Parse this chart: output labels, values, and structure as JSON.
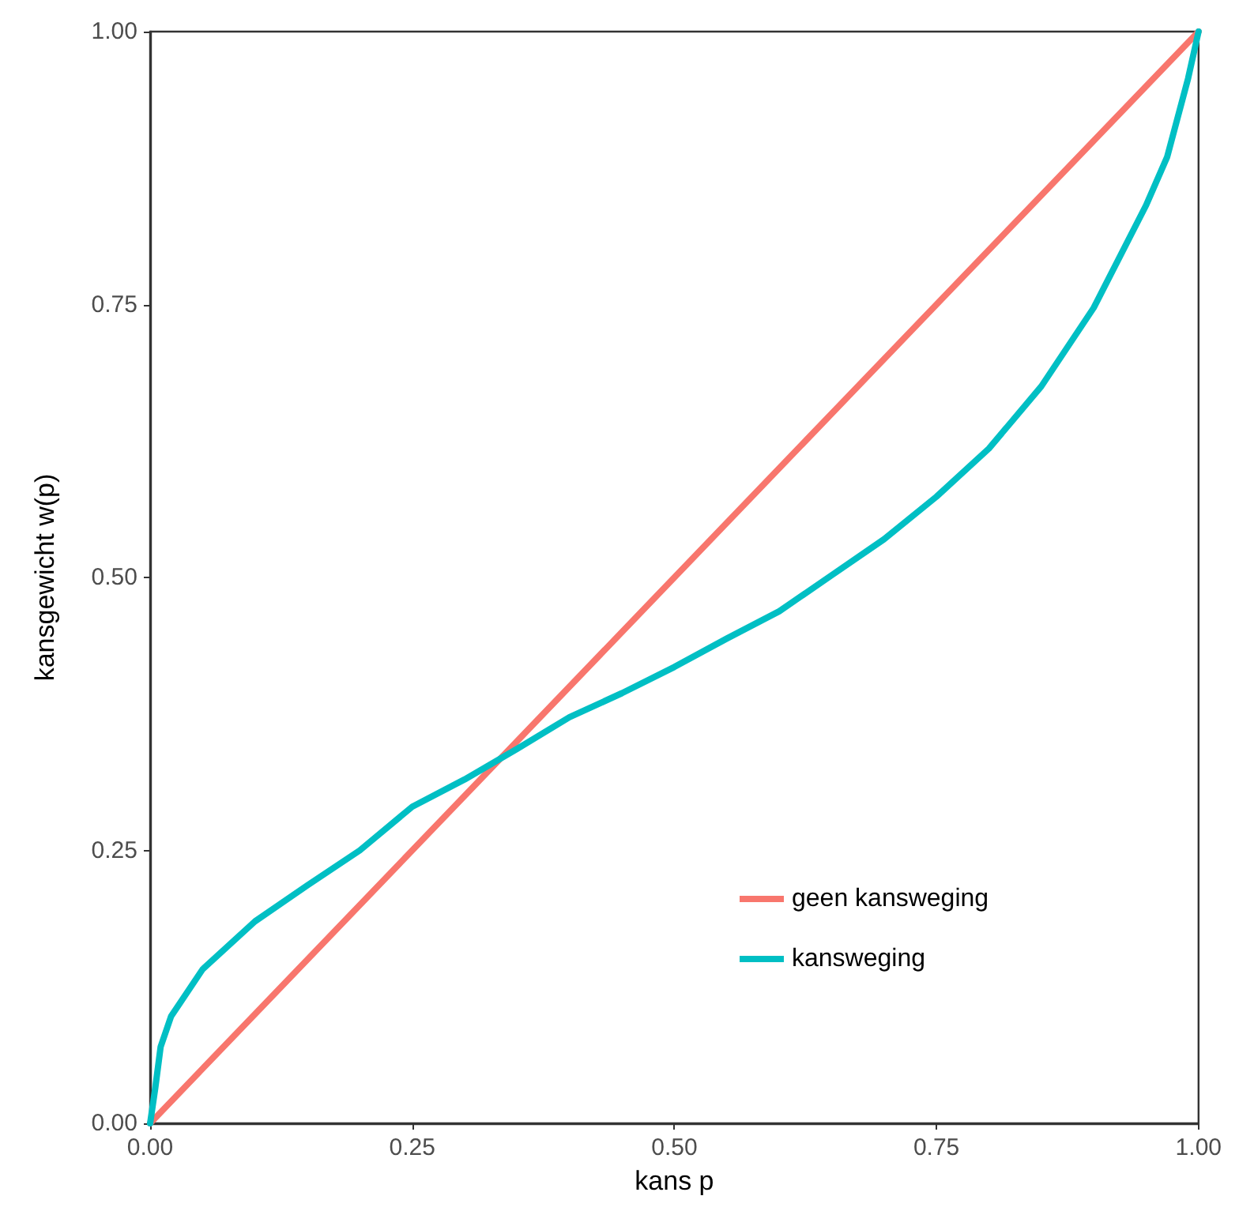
{
  "chart_data": {
    "type": "line",
    "xlabel": "kans p",
    "ylabel": "kansgewicht w(p)",
    "series": [
      {
        "name": "geen kansweging",
        "color": "#f8766d",
        "x": [
          0,
          1
        ],
        "values": [
          0,
          1
        ]
      },
      {
        "name": "kansweging",
        "color": "#00bfc4",
        "x": [
          0,
          0.005,
          0.01,
          0.02,
          0.05,
          0.1,
          0.15,
          0.2,
          0.25,
          0.3,
          0.35,
          0.4,
          0.45,
          0.5,
          0.55,
          0.6,
          0.65,
          0.7,
          0.75,
          0.8,
          0.85,
          0.9,
          0.95,
          0.97,
          0.99,
          1
        ],
        "values": [
          0,
          0.033,
          0.07,
          0.098,
          0.141,
          0.185,
          0.218,
          0.25,
          0.29,
          0.315,
          0.343,
          0.372,
          0.394,
          0.418,
          0.444,
          0.469,
          0.502,
          0.535,
          0.574,
          0.618,
          0.675,
          0.747,
          0.841,
          0.885,
          0.957,
          1
        ]
      }
    ],
    "xlim": [
      0,
      1
    ],
    "ylim": [
      0,
      1
    ],
    "xticks": [
      {
        "value": 0,
        "label": "0.00"
      },
      {
        "value": 0.25,
        "label": "0.25"
      },
      {
        "value": 0.5,
        "label": "0.50"
      },
      {
        "value": 0.75,
        "label": "0.75"
      },
      {
        "value": 1,
        "label": "1.00"
      }
    ],
    "yticks": [
      {
        "value": 0,
        "label": "0.00"
      },
      {
        "value": 0.25,
        "label": "0.25"
      },
      {
        "value": 0.5,
        "label": "0.50"
      },
      {
        "value": 0.75,
        "label": "0.75"
      },
      {
        "value": 1,
        "label": "1.00"
      }
    ],
    "grid": false,
    "legend": "bottom right",
    "marker": "none",
    "line_style": "solid"
  }
}
